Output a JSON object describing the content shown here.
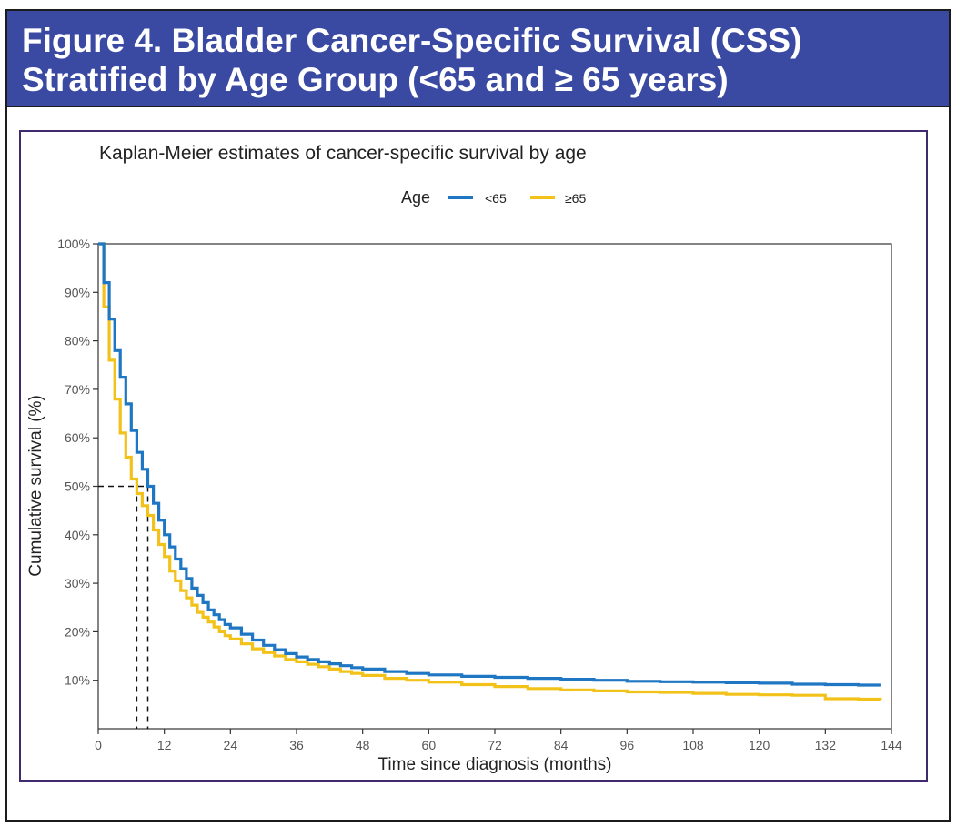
{
  "header": {
    "title_line1": "Figure 4. Bladder Cancer-Specific Survival (CSS)",
    "title_line2": "Stratified by Age Group (<65 and ≥ 65 years)",
    "background_color": "#3a4aa2"
  },
  "chart_data": {
    "type": "line",
    "title": "Kaplan-Meier estimates of cancer-specific survival by age",
    "xlabel": "Time since diagnosis (months)",
    "ylabel": "Cumulative survival (%)",
    "xlim": [
      0,
      144
    ],
    "ylim": [
      0,
      100
    ],
    "x_ticks": [
      0,
      12,
      24,
      36,
      48,
      60,
      72,
      84,
      96,
      108,
      120,
      132,
      144
    ],
    "y_ticks": [
      10,
      20,
      30,
      40,
      50,
      60,
      70,
      80,
      90,
      100
    ],
    "y_tick_labels": [
      "10%",
      "20%",
      "30%",
      "40%",
      "50%",
      "60%",
      "70%",
      "80%",
      "90%",
      "100%"
    ],
    "grid": false,
    "step": true,
    "legend": {
      "title": "Age",
      "position": "top"
    },
    "median_reference": {
      "y": 50,
      "x": [
        7,
        9
      ]
    },
    "series": [
      {
        "name": "<65",
        "color": "#1f77c4",
        "x": [
          0,
          1,
          2,
          3,
          4,
          5,
          6,
          7,
          8,
          9,
          10,
          11,
          12,
          13,
          14,
          15,
          16,
          17,
          18,
          19,
          20,
          21,
          22,
          23,
          24,
          26,
          28,
          30,
          32,
          34,
          36,
          38,
          40,
          42,
          44,
          46,
          48,
          52,
          56,
          60,
          66,
          72,
          78,
          84,
          90,
          96,
          102,
          108,
          114,
          120,
          126,
          132,
          138,
          142
        ],
        "y": [
          100,
          92,
          84.5,
          78,
          72.5,
          67,
          61.5,
          57,
          53.5,
          50,
          46.5,
          43,
          40,
          37.5,
          35,
          33,
          31,
          29,
          27.5,
          26,
          24.5,
          23.5,
          22.5,
          21.5,
          20.8,
          19.5,
          18.3,
          17.2,
          16.3,
          15.5,
          14.8,
          14.3,
          13.8,
          13.4,
          13,
          12.6,
          12.3,
          11.8,
          11.4,
          11.1,
          10.8,
          10.6,
          10.4,
          10.2,
          10,
          9.8,
          9.7,
          9.6,
          9.5,
          9.4,
          9.2,
          9.1,
          9,
          9
        ]
      },
      {
        "name": "≥65",
        "color": "#f2c21b",
        "x": [
          0,
          1,
          2,
          3,
          4,
          5,
          6,
          7,
          8,
          9,
          10,
          11,
          12,
          13,
          14,
          15,
          16,
          17,
          18,
          19,
          20,
          21,
          22,
          23,
          24,
          26,
          28,
          30,
          32,
          34,
          36,
          38,
          40,
          42,
          44,
          46,
          48,
          52,
          56,
          60,
          66,
          72,
          78,
          84,
          90,
          96,
          102,
          108,
          114,
          120,
          126,
          132,
          138,
          142
        ],
        "y": [
          100,
          87,
          76,
          68,
          61,
          56,
          51.5,
          48.5,
          46,
          44,
          41,
          38,
          35.5,
          32.5,
          30.5,
          28.5,
          27,
          25.5,
          24,
          23,
          22,
          21,
          20,
          19.2,
          18.5,
          17.5,
          16.5,
          15.7,
          15,
          14.3,
          13.8,
          13.3,
          12.8,
          12.3,
          11.8,
          11.4,
          11,
          10.4,
          10,
          9.6,
          9.1,
          8.7,
          8.3,
          8,
          7.8,
          7.6,
          7.5,
          7.3,
          7.1,
          7,
          6.9,
          6.2,
          6.1,
          6
        ]
      }
    ]
  }
}
